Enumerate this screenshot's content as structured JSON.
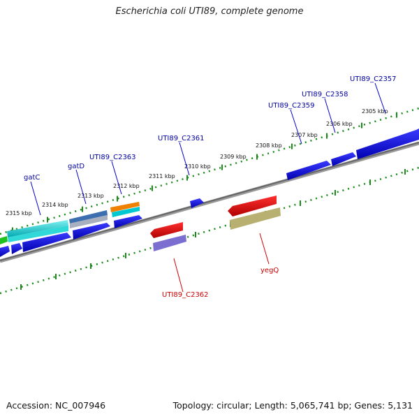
{
  "title": "Escherichia coli UTI89, complete genome",
  "footer": {
    "accession": "Accession: NC_007946",
    "topology": "Topology: circular; Length: 5,065,741 bp; Genes: 5,131"
  },
  "ticks": [
    "2305 kbp",
    "2306 kbp",
    "2307 kbp",
    "2308 kbp",
    "2309 kbp",
    "2310 kbp",
    "2311 kbp",
    "2312 kbp",
    "2313 kbp",
    "2314 kbp",
    "2315 kbp"
  ],
  "genes": [
    {
      "name": "UTI89_C2357",
      "strand": "forward",
      "color": "#0000e6"
    },
    {
      "name": "UTI89_C2358",
      "strand": "forward",
      "color": "#0000e6"
    },
    {
      "name": "UTI89_C2359",
      "strand": "forward",
      "color": "#0000e6"
    },
    {
      "name": "UTI89_C2361",
      "strand": "forward",
      "color": "#0000e6"
    },
    {
      "name": "UTI89_C2363",
      "strand": "forward",
      "color": "#f08000"
    },
    {
      "name": "gatD",
      "strand": "forward",
      "color": "#3366aa"
    },
    {
      "name": "gatC",
      "strand": "forward",
      "color": "#00c8c8"
    },
    {
      "name": "UTI89_C2362",
      "strand": "reverse",
      "color": "#e00000"
    },
    {
      "name": "yegQ",
      "strand": "reverse",
      "color": "#e00000"
    }
  ],
  "colors": {
    "forward_label": "#00008b",
    "reverse_label": "#cc0000",
    "tick": "#1a8a1a",
    "backbone": "#808080"
  }
}
